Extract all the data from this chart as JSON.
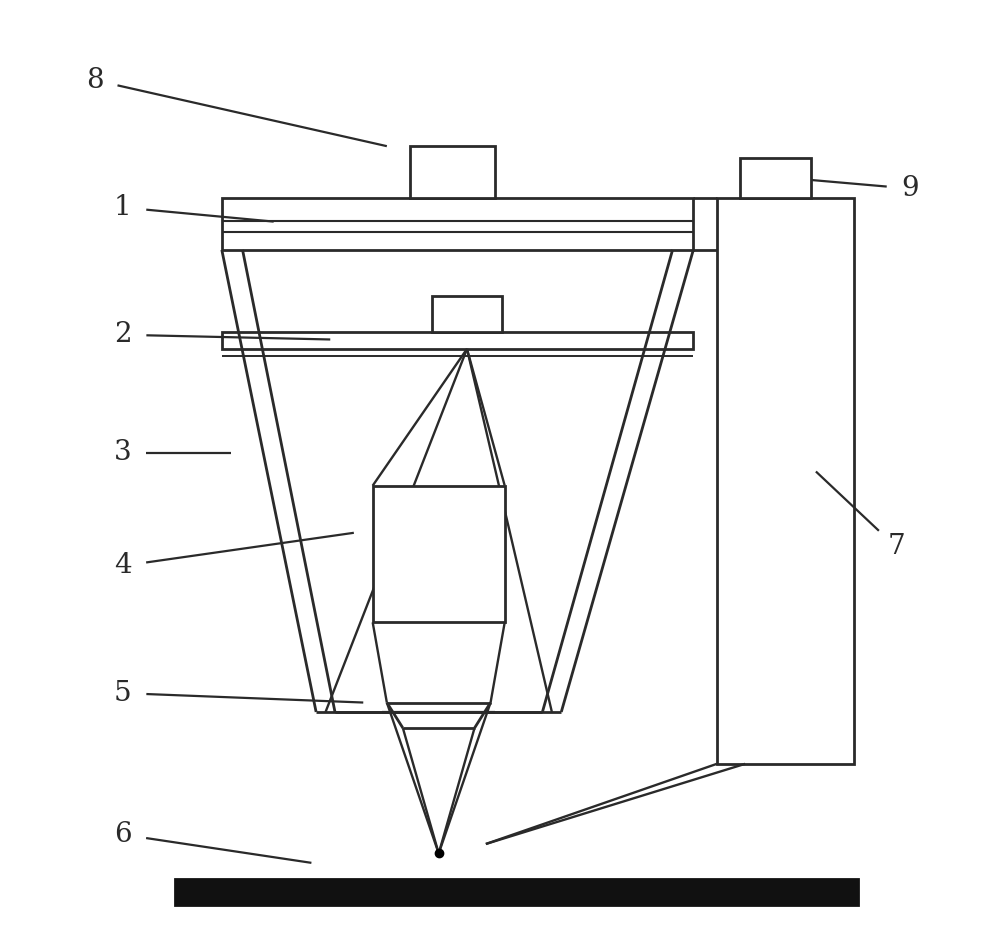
{
  "bg_color": "#ffffff",
  "line_color": "#2a2a2a",
  "lw": 2.0,
  "label_fontsize": 20,
  "fig_w": 10.0,
  "fig_h": 9.43,
  "dpi": 100,
  "labels": {
    "8": [
      0.07,
      0.915,
      0.38,
      0.845
    ],
    "1": [
      0.1,
      0.78,
      0.26,
      0.765
    ],
    "2": [
      0.1,
      0.645,
      0.32,
      0.64
    ],
    "3": [
      0.1,
      0.52,
      0.215,
      0.52
    ],
    "4": [
      0.1,
      0.4,
      0.345,
      0.435
    ],
    "5": [
      0.1,
      0.265,
      0.355,
      0.255
    ],
    "6": [
      0.1,
      0.115,
      0.3,
      0.085
    ],
    "7": [
      0.92,
      0.42,
      0.835,
      0.5
    ],
    "9": [
      0.935,
      0.8,
      0.82,
      0.81
    ]
  }
}
